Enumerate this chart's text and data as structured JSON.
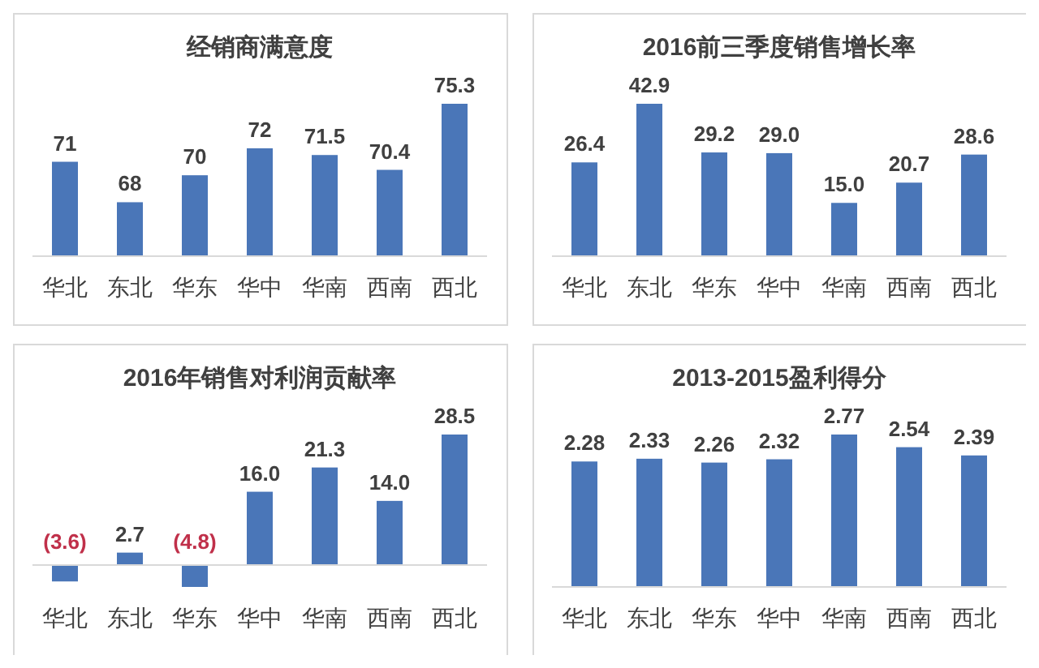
{
  "chart_data": [
    {
      "type": "bar",
      "title": "经销商满意度",
      "categories": [
        "华北",
        "东北",
        "华东",
        "华中",
        "华南",
        "西南",
        "西北"
      ],
      "values": [
        71,
        68,
        70,
        72,
        71.5,
        70.4,
        75.3
      ],
      "value_labels": [
        "71",
        "68",
        "70",
        "72",
        "71.5",
        "70.4",
        "75.3"
      ],
      "color": "#4a76b8",
      "ylim": [
        64,
        75.3
      ]
    },
    {
      "type": "bar",
      "title": "2016前三季度销售增长率",
      "categories": [
        "华北",
        "东北",
        "华东",
        "华中",
        "华南",
        "西南",
        "西北"
      ],
      "values": [
        26.4,
        42.9,
        29.2,
        29.0,
        15.0,
        20.7,
        28.6
      ],
      "value_labels": [
        "26.4",
        "42.9",
        "29.2",
        "29.0",
        "15.0",
        "20.7",
        "28.6"
      ],
      "color": "#4a76b8",
      "ylim": [
        0,
        42.9
      ]
    },
    {
      "type": "bar",
      "title": "2016年销售对利润贡献率",
      "categories": [
        "华北",
        "东北",
        "华东",
        "华中",
        "华南",
        "西南",
        "西北"
      ],
      "values": [
        -3.6,
        2.7,
        -4.8,
        16.0,
        21.3,
        14.0,
        28.5
      ],
      "value_labels": [
        "(3.6)",
        "2.7",
        "(4.8)",
        "16.0",
        "21.3",
        "14.0",
        "28.5"
      ],
      "color": "#4a76b8",
      "ylim": [
        -4.8,
        28.5
      ]
    },
    {
      "type": "bar",
      "title": "2013-2015盈利得分",
      "categories": [
        "华北",
        "东北",
        "华东",
        "华中",
        "华南",
        "西南",
        "西北"
      ],
      "values": [
        2.28,
        2.33,
        2.26,
        2.32,
        2.77,
        2.54,
        2.39
      ],
      "value_labels": [
        "2.28",
        "2.33",
        "2.26",
        "2.32",
        "2.77",
        "2.54",
        "2.39"
      ],
      "color": "#4a76b8",
      "ylim": [
        0,
        2.77
      ]
    }
  ]
}
